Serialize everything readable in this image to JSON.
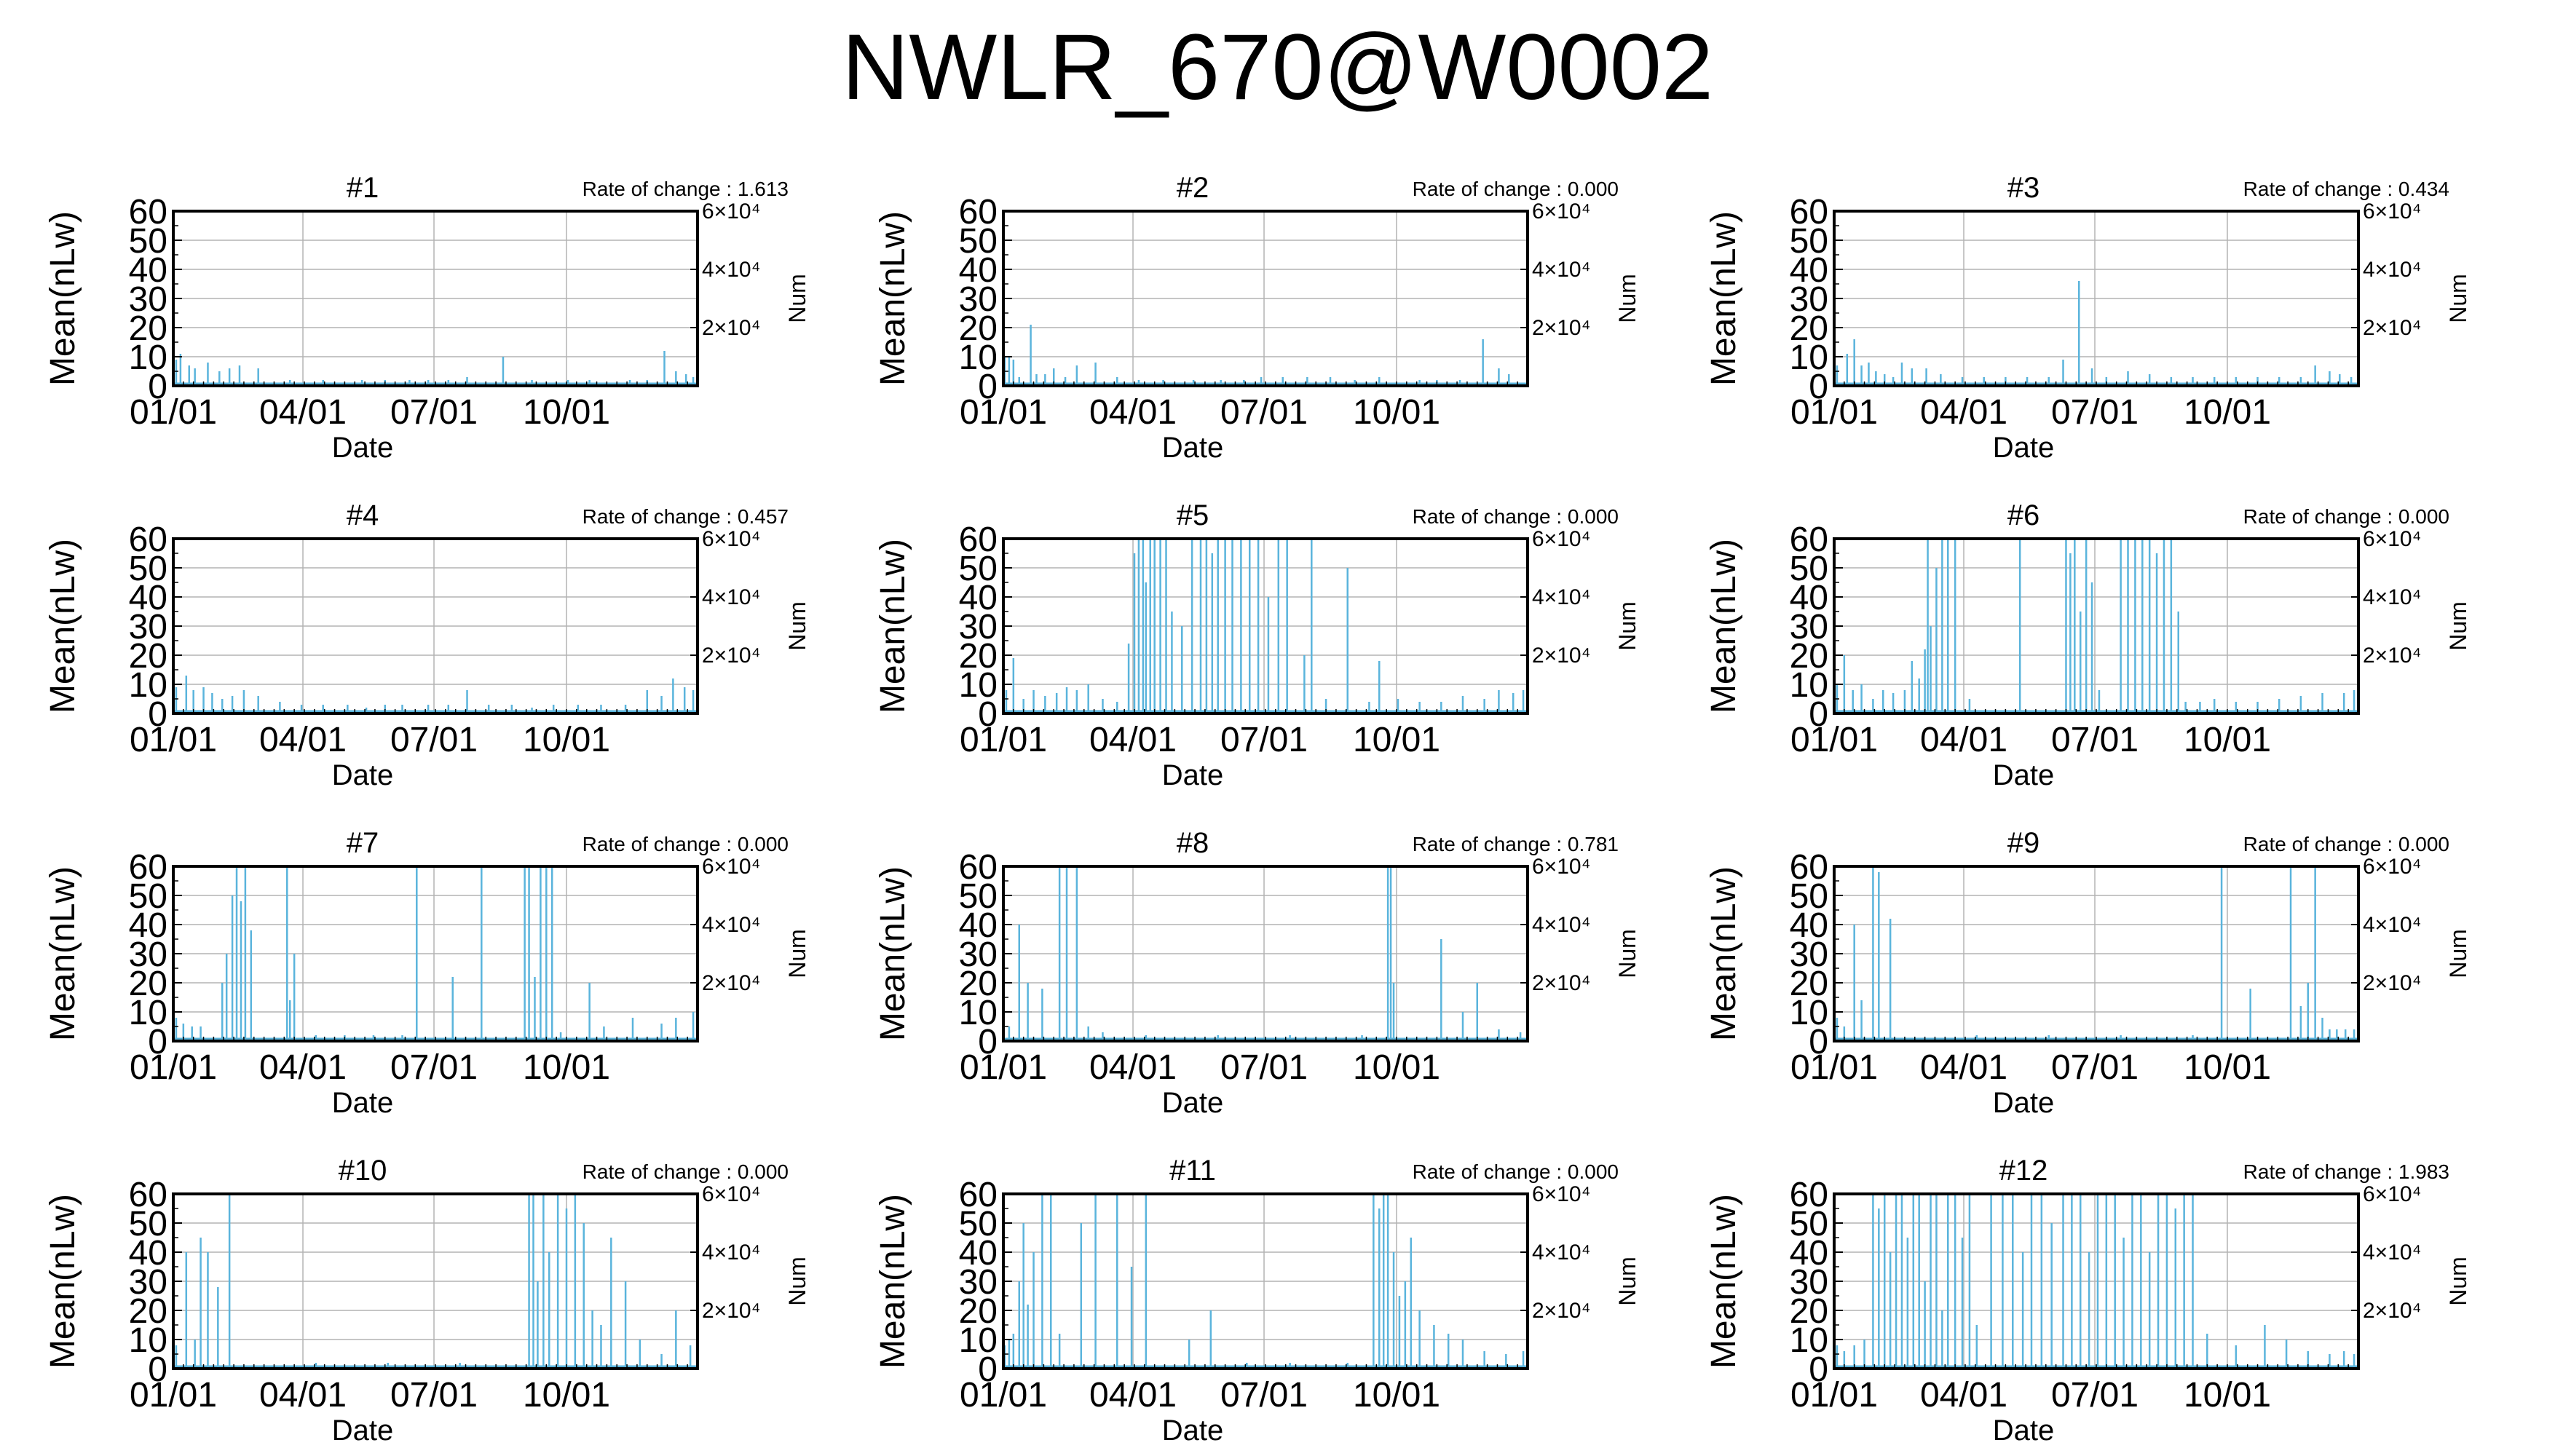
{
  "title": "NWLR_670@W0002",
  "colors": {
    "bar": "#5ab4dc",
    "grid": "#b4b4b4",
    "axis": "#000000"
  },
  "chart_data": [
    {
      "type": "bar",
      "title": "#1",
      "rate_label": "Rate of change : 1.613",
      "xlabel": "Date",
      "ylabel": "Mean(nLw)",
      "y2label": "Num",
      "xticks": [
        "01/01",
        "04/01",
        "07/01",
        "10/01"
      ],
      "yticks": [
        0,
        10,
        20,
        30,
        40,
        50,
        60
      ],
      "y2ticks": [
        "2×10⁴",
        "4×10⁴",
        "6×10⁴"
      ],
      "xlim": [
        1,
        365
      ],
      "ylim": [
        0,
        60
      ],
      "grid": true,
      "x": [
        3,
        6,
        12,
        16,
        25,
        33,
        40,
        47,
        60,
        82,
        105,
        132,
        148,
        165,
        178,
        192,
        205,
        230,
        250,
        275,
        290,
        318,
        330,
        342,
        350,
        357,
        362
      ],
      "values": [
        9,
        11,
        7,
        6,
        8,
        5,
        6,
        7,
        6,
        2,
        2,
        2,
        2,
        2,
        2,
        2,
        3,
        10,
        2,
        2,
        2,
        2,
        2,
        12,
        5,
        4,
        3
      ]
    },
    {
      "type": "bar",
      "title": "#2",
      "rate_label": "Rate of change : 0.000",
      "xlabel": "Date",
      "ylabel": "Mean(nLw)",
      "y2label": "Num",
      "xticks": [
        "01/01",
        "04/01",
        "07/01",
        "10/01"
      ],
      "yticks": [
        0,
        10,
        20,
        30,
        40,
        50,
        60
      ],
      "y2ticks": [
        "2×10⁴",
        "4×10⁴",
        "6×10⁴"
      ],
      "xlim": [
        1,
        365
      ],
      "ylim": [
        0,
        60
      ],
      "grid": true,
      "x": [
        2,
        5,
        8,
        12,
        20,
        24,
        30,
        36,
        44,
        52,
        65,
        80,
        95,
        112,
        133,
        152,
        168,
        180,
        195,
        212,
        228,
        245,
        262,
        290,
        302,
        318,
        334,
        345,
        352
      ],
      "values": [
        10,
        10,
        9,
        3,
        21,
        4,
        4,
        6,
        3,
        7,
        8,
        3,
        2,
        2,
        2,
        2,
        2,
        3,
        3,
        3,
        3,
        2,
        3,
        2,
        2,
        2,
        16,
        6,
        4
      ]
    },
    {
      "type": "bar",
      "title": "#3",
      "rate_label": "Rate of change : 0.434",
      "xlabel": "Date",
      "ylabel": "Mean(nLw)",
      "y2label": "Num",
      "xticks": [
        "01/01",
        "04/01",
        "07/01",
        "10/01"
      ],
      "yticks": [
        0,
        10,
        20,
        30,
        40,
        50,
        60
      ],
      "y2ticks": [
        "2×10⁴",
        "4×10⁴",
        "6×10⁴"
      ],
      "xlim": [
        1,
        365
      ],
      "ylim": [
        0,
        60
      ],
      "grid": true,
      "x": [
        3,
        10,
        15,
        20,
        25,
        30,
        36,
        42,
        48,
        55,
        65,
        75,
        90,
        105,
        120,
        135,
        150,
        160,
        171,
        180,
        190,
        205,
        220,
        235,
        250,
        265,
        280,
        295,
        310,
        325,
        335,
        345,
        352,
        360
      ],
      "values": [
        7,
        11,
        16,
        7,
        8,
        5,
        4,
        3,
        8,
        6,
        6,
        4,
        3,
        3,
        3,
        3,
        3,
        9,
        36,
        6,
        3,
        5,
        4,
        3,
        3,
        3,
        3,
        3,
        3,
        3,
        7,
        5,
        4,
        3
      ]
    },
    {
      "type": "bar",
      "title": "#4",
      "rate_label": "Rate of change : 0.457",
      "xlabel": "Date",
      "ylabel": "Mean(nLw)",
      "y2label": "Num",
      "xticks": [
        "01/01",
        "04/01",
        "07/01",
        "10/01"
      ],
      "yticks": [
        0,
        10,
        20,
        30,
        40,
        50,
        60
      ],
      "y2ticks": [
        "2×10⁴",
        "4×10⁴",
        "6×10⁴"
      ],
      "xlim": [
        1,
        365
      ],
      "ylim": [
        0,
        60
      ],
      "grid": true,
      "x": [
        3,
        10,
        15,
        22,
        28,
        35,
        42,
        50,
        60,
        75,
        90,
        105,
        122,
        135,
        148,
        160,
        178,
        192,
        205,
        220,
        236,
        250,
        265,
        282,
        298,
        315,
        330,
        340,
        348,
        356,
        362
      ],
      "values": [
        9,
        13,
        8,
        9,
        7,
        5,
        6,
        8,
        6,
        4,
        3,
        3,
        3,
        2,
        3,
        3,
        3,
        3,
        8,
        3,
        3,
        2,
        3,
        3,
        3,
        3,
        8,
        6,
        12,
        9,
        8
      ]
    },
    {
      "type": "bar",
      "title": "#5",
      "rate_label": "Rate of change : 0.000",
      "xlabel": "Date",
      "ylabel": "Mean(nLw)",
      "y2label": "Num",
      "xticks": [
        "01/01",
        "04/01",
        "07/01",
        "10/01"
      ],
      "yticks": [
        0,
        10,
        20,
        30,
        40,
        50,
        60
      ],
      "y2ticks": [
        "2×10⁴",
        "4×10⁴",
        "6×10⁴"
      ],
      "xlim": [
        1,
        365
      ],
      "ylim": [
        0,
        60
      ],
      "grid": true,
      "x": [
        3,
        8,
        15,
        22,
        30,
        38,
        45,
        52,
        60,
        70,
        80,
        88,
        92,
        95,
        98,
        100,
        103,
        106,
        110,
        114,
        118,
        125,
        132,
        138,
        142,
        146,
        150,
        155,
        160,
        166,
        172,
        178,
        185,
        192,
        198,
        210,
        215,
        225,
        240,
        255,
        262,
        275,
        290,
        305,
        320,
        335,
        345,
        355,
        362
      ],
      "values": [
        8,
        19,
        5,
        8,
        6,
        7,
        9,
        8,
        10,
        5,
        4,
        24,
        55,
        60,
        60,
        45,
        60,
        60,
        60,
        60,
        35,
        30,
        60,
        60,
        60,
        55,
        60,
        60,
        60,
        60,
        60,
        60,
        40,
        60,
        60,
        20,
        60,
        5,
        50,
        4,
        18,
        5,
        4,
        4,
        6,
        5,
        8,
        7,
        8
      ]
    },
    {
      "type": "bar",
      "title": "#6",
      "rate_label": "Rate of change : 0.000",
      "xlabel": "Date",
      "ylabel": "Mean(nLw)",
      "y2label": "Num",
      "xticks": [
        "01/01",
        "04/01",
        "07/01",
        "10/01"
      ],
      "yticks": [
        0,
        10,
        20,
        30,
        40,
        50,
        60
      ],
      "y2ticks": [
        "2×10⁴",
        "4×10⁴",
        "6×10⁴"
      ],
      "xlim": [
        1,
        365
      ],
      "ylim": [
        0,
        60
      ],
      "grid": true,
      "x": [
        3,
        8,
        14,
        20,
        28,
        35,
        42,
        50,
        55,
        60,
        64,
        66,
        68,
        72,
        76,
        80,
        85,
        95,
        130,
        162,
        165,
        168,
        172,
        176,
        180,
        185,
        200,
        205,
        210,
        215,
        220,
        225,
        230,
        235,
        240,
        245,
        255,
        265,
        280,
        295,
        310,
        325,
        340,
        355,
        362
      ],
      "values": [
        10,
        20,
        8,
        10,
        5,
        8,
        7,
        8,
        18,
        12,
        22,
        60,
        30,
        50,
        60,
        60,
        60,
        5,
        60,
        60,
        55,
        60,
        35,
        60,
        45,
        8,
        60,
        60,
        60,
        60,
        60,
        55,
        60,
        60,
        35,
        4,
        4,
        5,
        4,
        4,
        5,
        6,
        7,
        7,
        8
      ]
    },
    {
      "type": "bar",
      "title": "#7",
      "rate_label": "Rate of change : 0.000",
      "xlabel": "Date",
      "ylabel": "Mean(nLw)",
      "y2label": "Num",
      "xticks": [
        "01/01",
        "04/01",
        "07/01",
        "10/01"
      ],
      "yticks": [
        0,
        10,
        20,
        30,
        40,
        50,
        60
      ],
      "y2ticks": [
        "2×10⁴",
        "4×10⁴",
        "6×10⁴"
      ],
      "xlim": [
        1,
        365
      ],
      "ylim": [
        0,
        60
      ],
      "grid": true,
      "x": [
        3,
        8,
        14,
        20,
        35,
        38,
        42,
        45,
        48,
        51,
        55,
        80,
        82,
        85,
        100,
        120,
        140,
        160,
        170,
        195,
        215,
        245,
        248,
        252,
        256,
        260,
        264,
        270,
        290,
        300,
        320,
        340,
        350,
        362
      ],
      "values": [
        8,
        6,
        5,
        5,
        20,
        30,
        50,
        60,
        48,
        60,
        38,
        60,
        14,
        30,
        2,
        2,
        2,
        2,
        60,
        22,
        60,
        60,
        60,
        22,
        60,
        60,
        60,
        3,
        20,
        5,
        8,
        6,
        8,
        10
      ]
    },
    {
      "type": "bar",
      "title": "#8",
      "rate_label": "Rate of change : 0.781",
      "xlabel": "Date",
      "ylabel": "Mean(nLw)",
      "y2label": "Num",
      "xticks": [
        "01/01",
        "04/01",
        "07/01",
        "10/01"
      ],
      "yticks": [
        0,
        10,
        20,
        30,
        40,
        50,
        60
      ],
      "y2ticks": [
        "2×10⁴",
        "4×10⁴",
        "6×10⁴"
      ],
      "xlim": [
        1,
        365
      ],
      "ylim": [
        0,
        60
      ],
      "grid": true,
      "x": [
        5,
        12,
        18,
        28,
        40,
        45,
        52,
        60,
        70,
        100,
        150,
        200,
        250,
        268,
        270,
        272,
        305,
        320,
        330,
        345,
        360
      ],
      "values": [
        5,
        40,
        20,
        18,
        60,
        60,
        60,
        5,
        3,
        2,
        2,
        2,
        2,
        60,
        60,
        20,
        35,
        10,
        20,
        4,
        3
      ]
    },
    {
      "type": "bar",
      "title": "#9",
      "rate_label": "Rate of change : 0.000",
      "xlabel": "Date",
      "ylabel": "Mean(nLw)",
      "y2label": "Num",
      "xticks": [
        "01/01",
        "04/01",
        "07/01",
        "10/01"
      ],
      "yticks": [
        0,
        10,
        20,
        30,
        40,
        50,
        60
      ],
      "y2ticks": [
        "2×10⁴",
        "4×10⁴",
        "6×10⁴"
      ],
      "xlim": [
        1,
        365
      ],
      "ylim": [
        0,
        60
      ],
      "grid": true,
      "x": [
        3,
        8,
        15,
        20,
        28,
        32,
        40,
        100,
        150,
        200,
        250,
        270,
        290,
        318,
        325,
        330,
        335,
        340,
        345,
        350,
        356,
        362
      ],
      "values": [
        8,
        5,
        40,
        14,
        60,
        58,
        42,
        2,
        2,
        2,
        2,
        60,
        18,
        60,
        12,
        20,
        60,
        8,
        4,
        4,
        4,
        4
      ]
    },
    {
      "type": "bar",
      "title": "#10",
      "rate_label": "Rate of change : 0.000",
      "xlabel": "Date",
      "ylabel": "Mean(nLw)",
      "y2label": "Num",
      "xticks": [
        "01/01",
        "04/01",
        "07/01",
        "10/01"
      ],
      "yticks": [
        0,
        10,
        20,
        30,
        40,
        50,
        60
      ],
      "y2ticks": [
        "2×10⁴",
        "4×10⁴",
        "6×10⁴"
      ],
      "xlim": [
        1,
        365
      ],
      "ylim": [
        0,
        60
      ],
      "grid": true,
      "x": [
        3,
        10,
        16,
        20,
        25,
        32,
        40,
        100,
        150,
        200,
        248,
        251,
        254,
        258,
        262,
        268,
        274,
        280,
        286,
        292,
        298,
        305,
        315,
        325,
        340,
        350,
        360
      ],
      "values": [
        8,
        40,
        10,
        45,
        40,
        28,
        60,
        2,
        2,
        2,
        60,
        60,
        30,
        60,
        40,
        60,
        55,
        60,
        50,
        20,
        15,
        45,
        30,
        10,
        5,
        20,
        8
      ]
    },
    {
      "type": "bar",
      "title": "#11",
      "rate_label": "Rate of change : 0.000",
      "xlabel": "Date",
      "ylabel": "Mean(nLw)",
      "y2label": "Num",
      "xticks": [
        "01/01",
        "04/01",
        "07/01",
        "10/01"
      ],
      "yticks": [
        0,
        10,
        20,
        30,
        40,
        50,
        60
      ],
      "y2ticks": [
        "2×10⁴",
        "4×10⁴",
        "6×10⁴"
      ],
      "xlim": [
        1,
        365
      ],
      "ylim": [
        0,
        60
      ],
      "grid": true,
      "x": [
        2,
        5,
        8,
        12,
        15,
        18,
        22,
        28,
        34,
        40,
        55,
        65,
        80,
        90,
        100,
        130,
        145,
        170,
        200,
        240,
        258,
        262,
        265,
        268,
        272,
        276,
        280,
        284,
        290,
        300,
        310,
        320,
        335,
        350,
        362
      ],
      "values": [
        8,
        10,
        12,
        30,
        50,
        22,
        40,
        60,
        60,
        12,
        50,
        60,
        60,
        35,
        60,
        10,
        20,
        2,
        2,
        2,
        60,
        55,
        60,
        60,
        40,
        25,
        30,
        45,
        20,
        15,
        12,
        10,
        6,
        5,
        6
      ]
    },
    {
      "type": "bar",
      "title": "#12",
      "rate_label": "Rate of change : 1.983",
      "xlabel": "Date",
      "ylabel": "Mean(nLw)",
      "y2label": "Num",
      "xticks": [
        "01/01",
        "04/01",
        "07/01",
        "10/01"
      ],
      "yticks": [
        0,
        10,
        20,
        30,
        40,
        50,
        60
      ],
      "y2ticks": [
        "2×10⁴",
        "4×10⁴",
        "6×10⁴"
      ],
      "xlim": [
        1,
        365
      ],
      "ylim": [
        0,
        60
      ],
      "grid": true,
      "x": [
        3,
        8,
        15,
        22,
        28,
        32,
        36,
        40,
        44,
        48,
        52,
        56,
        60,
        64,
        68,
        72,
        76,
        80,
        85,
        90,
        95,
        100,
        110,
        118,
        125,
        132,
        138,
        145,
        152,
        160,
        166,
        172,
        178,
        184,
        190,
        196,
        202,
        208,
        214,
        220,
        226,
        232,
        238,
        244,
        250,
        260,
        280,
        300,
        315,
        330,
        345,
        355,
        362
      ],
      "values": [
        8,
        6,
        8,
        10,
        60,
        55,
        60,
        40,
        60,
        60,
        45,
        60,
        60,
        30,
        60,
        60,
        20,
        60,
        60,
        45,
        60,
        15,
        60,
        60,
        60,
        40,
        60,
        60,
        50,
        60,
        60,
        60,
        40,
        60,
        60,
        60,
        45,
        60,
        60,
        40,
        60,
        60,
        55,
        60,
        60,
        12,
        8,
        15,
        10,
        6,
        5,
        6,
        5
      ]
    }
  ]
}
